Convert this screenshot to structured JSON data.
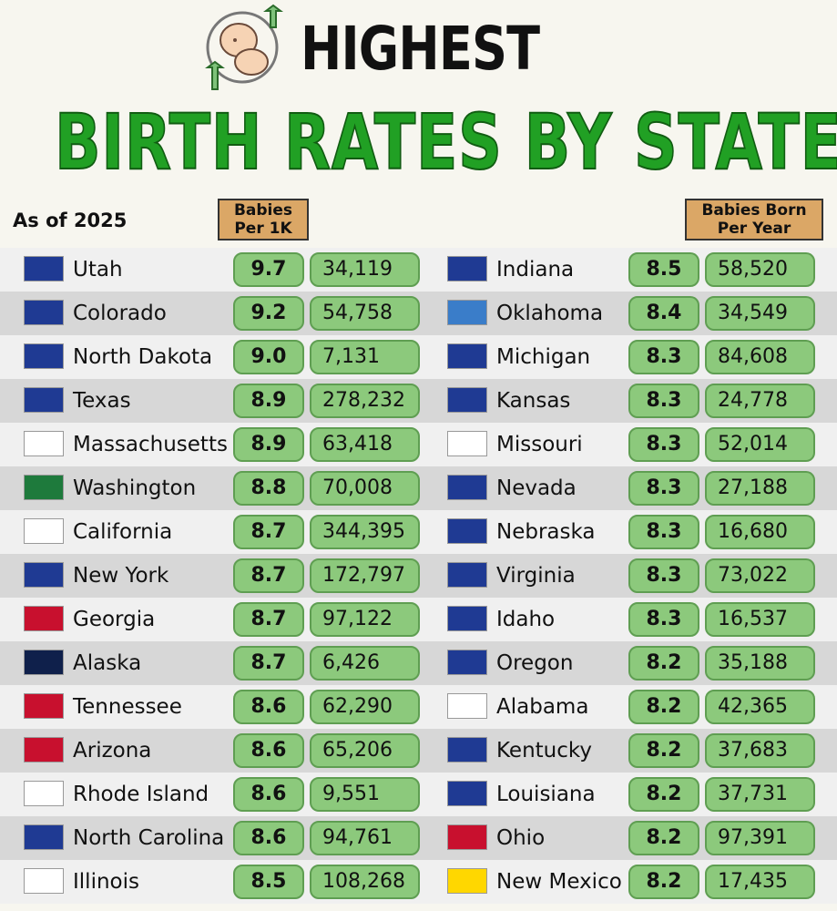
{
  "header": {
    "title_line1": "HIGHEST",
    "title_line2": "BIRTH RATES BY STATE",
    "as_of": "As of 2025",
    "col_rate": "Babies Per 1K",
    "col_born": "Babies Born Per Year"
  },
  "left": [
    {
      "name": "Utah",
      "rate": "9.7",
      "born": "34,119",
      "flag": "#1f3a93"
    },
    {
      "name": "Colorado",
      "rate": "9.2",
      "born": "54,758",
      "flag": "#1f3a93"
    },
    {
      "name": "North Dakota",
      "rate": "9.0",
      "born": "7,131",
      "flag": "#1f3a93"
    },
    {
      "name": "Texas",
      "rate": "8.9",
      "born": "278,232",
      "flag": "#1f3a93"
    },
    {
      "name": "Massachusetts",
      "rate": "8.9",
      "born": "63,418",
      "flag": "#ffffff"
    },
    {
      "name": "Washington",
      "rate": "8.8",
      "born": "70,008",
      "flag": "#1e7a3c"
    },
    {
      "name": "California",
      "rate": "8.7",
      "born": "344,395",
      "flag": "#ffffff"
    },
    {
      "name": "New York",
      "rate": "8.7",
      "born": "172,797",
      "flag": "#1f3a93"
    },
    {
      "name": "Georgia",
      "rate": "8.7",
      "born": "97,122",
      "flag": "#c8102e"
    },
    {
      "name": "Alaska",
      "rate": "8.7",
      "born": "6,426",
      "flag": "#0f204b"
    },
    {
      "name": "Tennessee",
      "rate": "8.6",
      "born": "62,290",
      "flag": "#c8102e"
    },
    {
      "name": "Arizona",
      "rate": "8.6",
      "born": "65,206",
      "flag": "#c8102e"
    },
    {
      "name": "Rhode Island",
      "rate": "8.6",
      "born": "9,551",
      "flag": "#ffffff"
    },
    {
      "name": "North Carolina",
      "rate": "8.6",
      "born": "94,761",
      "flag": "#1f3a93"
    },
    {
      "name": "Illinois",
      "rate": "8.5",
      "born": "108,268",
      "flag": "#ffffff"
    }
  ],
  "right": [
    {
      "name": "Indiana",
      "rate": "8.5",
      "born": "58,520",
      "flag": "#1f3a93"
    },
    {
      "name": "Oklahoma",
      "rate": "8.4",
      "born": "34,549",
      "flag": "#3a7dc9"
    },
    {
      "name": "Michigan",
      "rate": "8.3",
      "born": "84,608",
      "flag": "#1f3a93"
    },
    {
      "name": "Kansas",
      "rate": "8.3",
      "born": "24,778",
      "flag": "#1f3a93"
    },
    {
      "name": "Missouri",
      "rate": "8.3",
      "born": "52,014",
      "flag": "#ffffff"
    },
    {
      "name": "Nevada",
      "rate": "8.3",
      "born": "27,188",
      "flag": "#1f3a93"
    },
    {
      "name": "Nebraska",
      "rate": "8.3",
      "born": "16,680",
      "flag": "#1f3a93"
    },
    {
      "name": "Virginia",
      "rate": "8.3",
      "born": "73,022",
      "flag": "#1f3a93"
    },
    {
      "name": "Idaho",
      "rate": "8.3",
      "born": "16,537",
      "flag": "#1f3a93"
    },
    {
      "name": "Oregon",
      "rate": "8.2",
      "born": "35,188",
      "flag": "#1f3a93"
    },
    {
      "name": "Alabama",
      "rate": "8.2",
      "born": "42,365",
      "flag": "#ffffff"
    },
    {
      "name": "Kentucky",
      "rate": "8.2",
      "born": "37,683",
      "flag": "#1f3a93"
    },
    {
      "name": "Louisiana",
      "rate": "8.2",
      "born": "37,731",
      "flag": "#1f3a93"
    },
    {
      "name": "Ohio",
      "rate": "8.2",
      "born": "97,391",
      "flag": "#c8102e"
    },
    {
      "name": "New Mexico",
      "rate": "8.2",
      "born": "17,435",
      "flag": "#ffd700"
    }
  ]
}
